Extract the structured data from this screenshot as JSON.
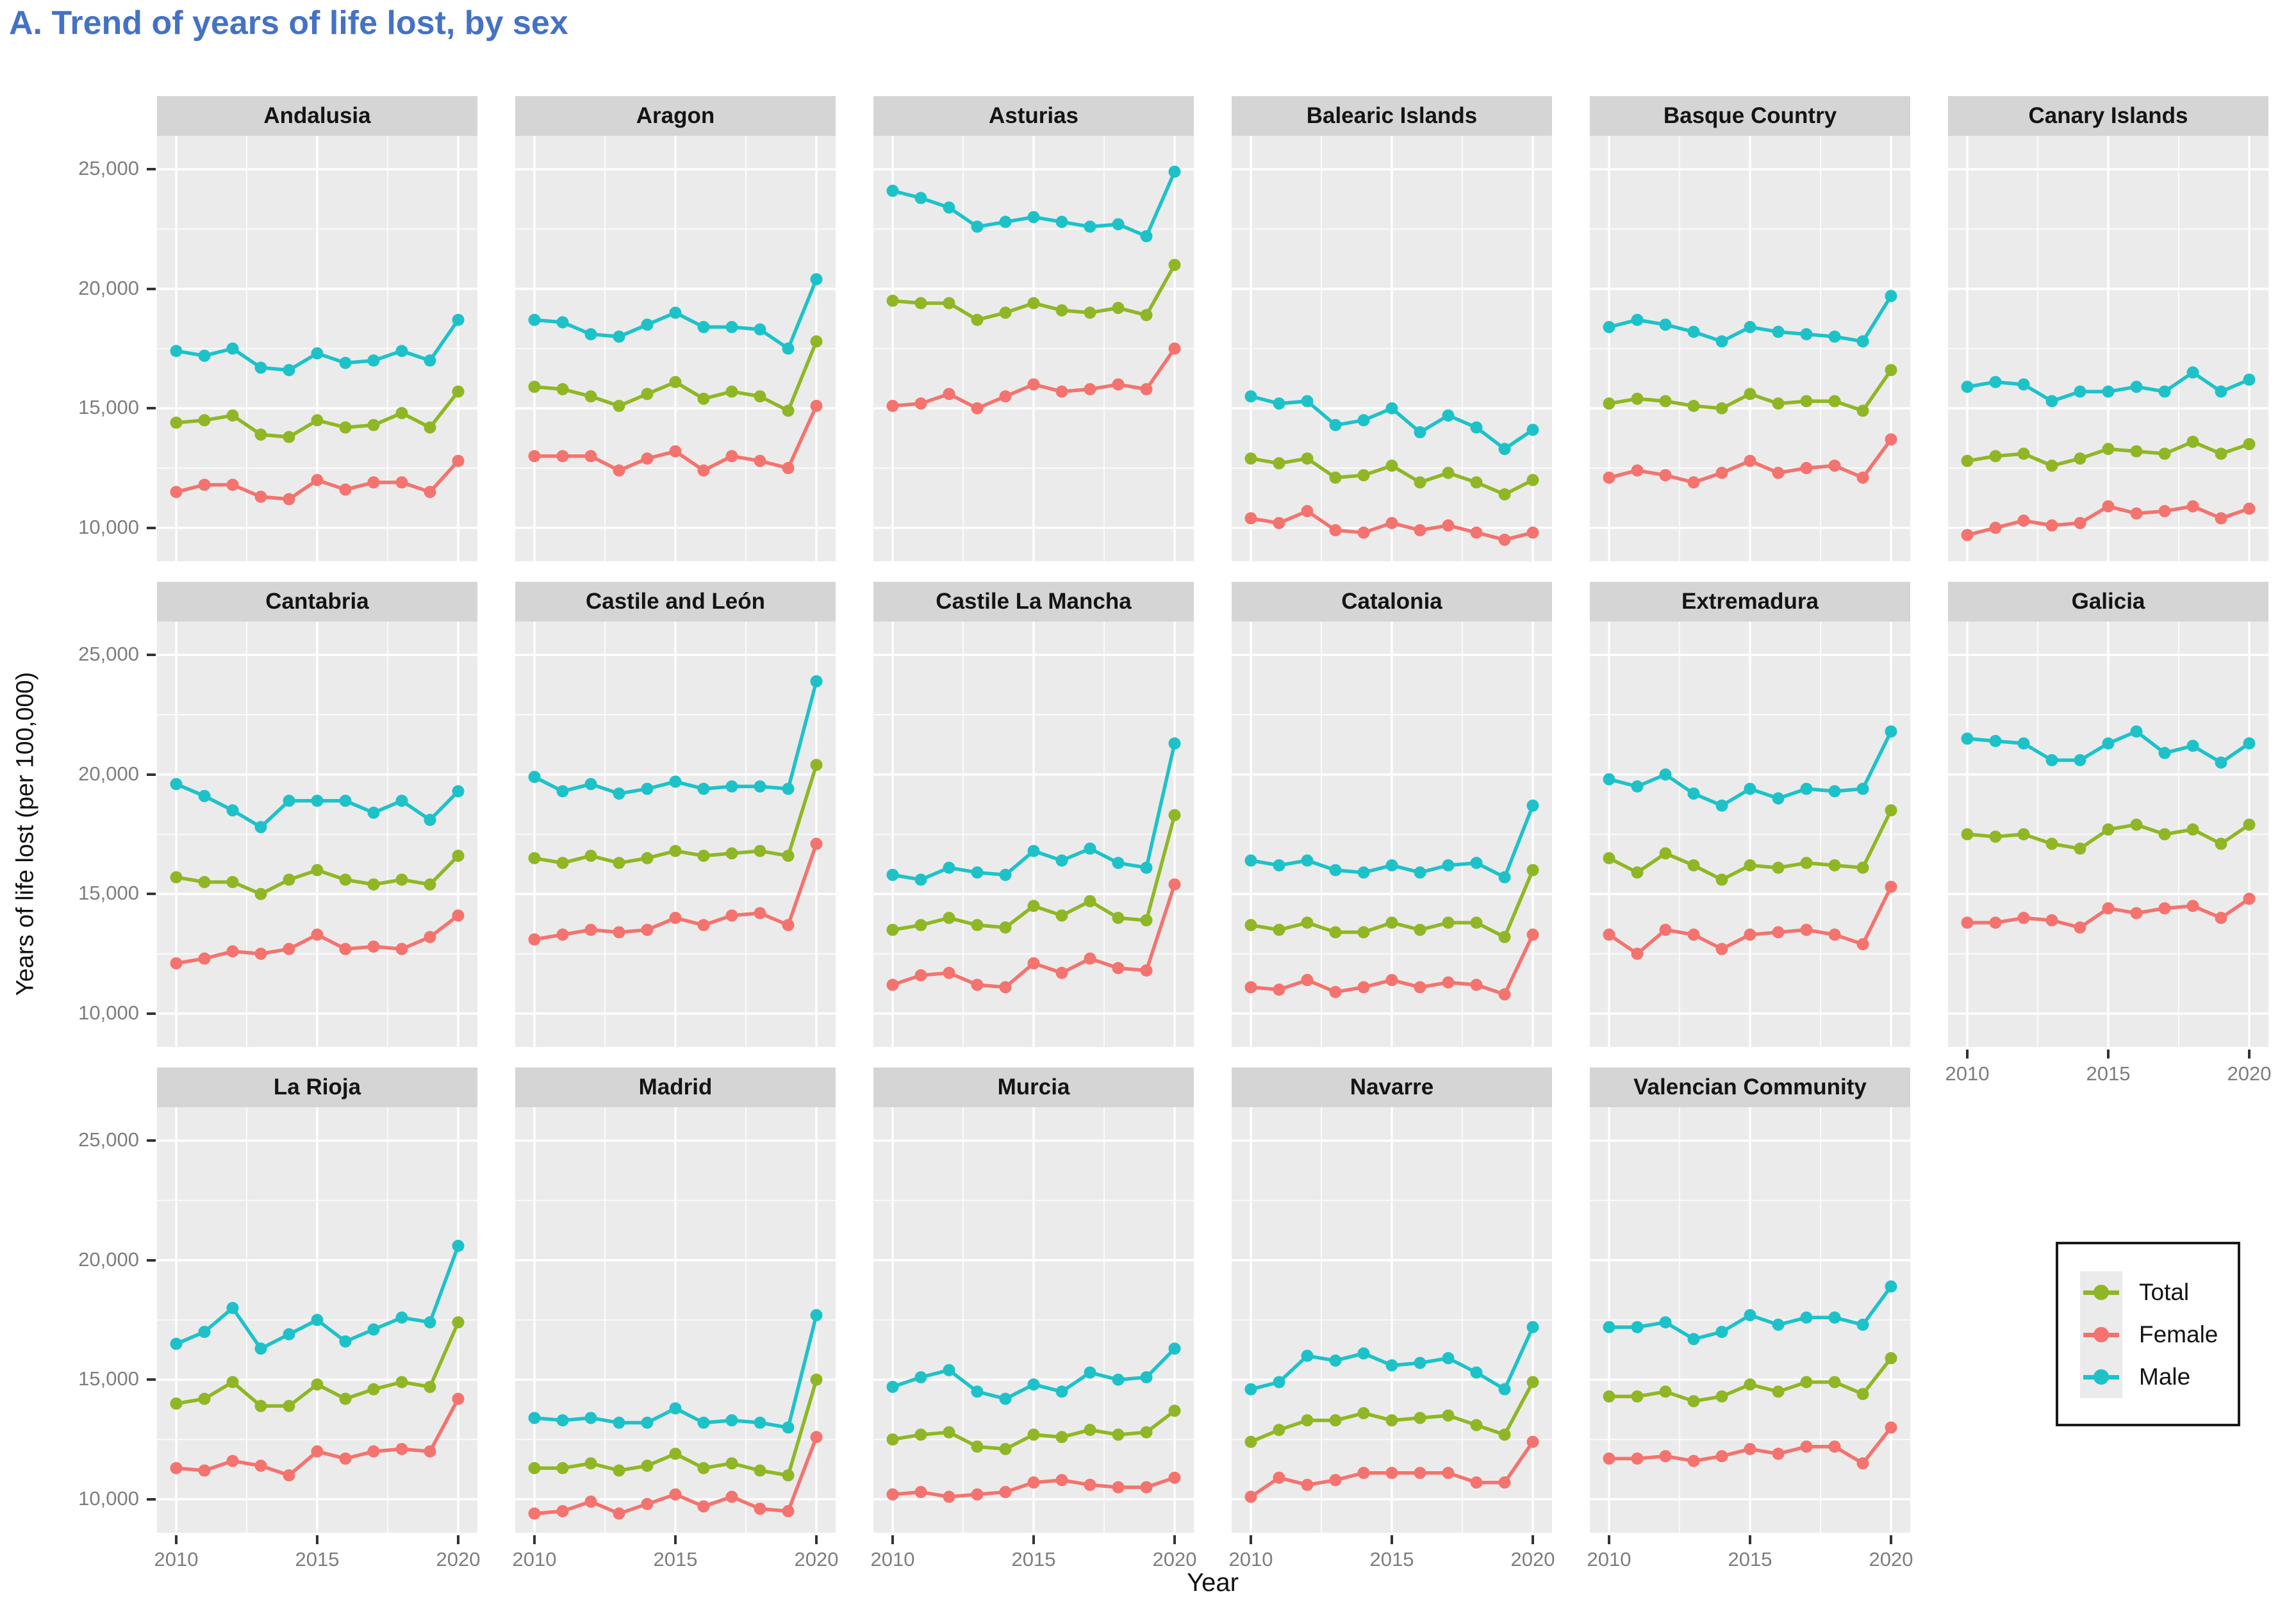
{
  "title": "A. Trend of years of life lost, by sex",
  "axes": {
    "x_label": "Year",
    "y_label": "Years of life lost (per 100,000)",
    "y_tick_labels": [
      "25,000",
      "20,000",
      "15,000",
      "10,000"
    ],
    "x_tick_labels": [
      "2010",
      "2015",
      "2020"
    ]
  },
  "legend": {
    "items": [
      {
        "label": "Total",
        "color": "#8fb725"
      },
      {
        "label": "Female",
        "color": "#f4736e"
      },
      {
        "label": "Male",
        "color": "#1dc2c9"
      }
    ]
  },
  "chart_data": {
    "type": "line",
    "title": "A. Trend of years of life lost, by sex",
    "xlabel": "Year",
    "ylabel": "Years of life lost (per 100,000)",
    "x": [
      2010,
      2011,
      2012,
      2013,
      2014,
      2015,
      2016,
      2017,
      2018,
      2019,
      2020
    ],
    "ylim": [
      8600,
      26400
    ],
    "y_major_ticks": [
      10000,
      15000,
      20000,
      25000
    ],
    "y_minor_ticks": [
      12500,
      17500,
      22500
    ],
    "x_major_ticks": [
      2010,
      2015,
      2020
    ],
    "x_minor_ticks": [
      2012.5,
      2017.5
    ],
    "grid": true,
    "legend_position": "bottom-right-cell",
    "series_meta": [
      {
        "name": "Total",
        "color": "#8fb725"
      },
      {
        "name": "Female",
        "color": "#f4736e"
      },
      {
        "name": "Male",
        "color": "#1dc2c9"
      }
    ],
    "facets": [
      {
        "name": "Andalusia",
        "row": 0,
        "col": 0,
        "series": {
          "Male": [
            17400,
            17200,
            17500,
            16700,
            16600,
            17300,
            16900,
            17000,
            17400,
            17000,
            18700
          ],
          "Total": [
            14400,
            14500,
            14700,
            13900,
            13800,
            14500,
            14200,
            14300,
            14800,
            14200,
            15700
          ],
          "Female": [
            11500,
            11800,
            11800,
            11300,
            11200,
            12000,
            11600,
            11900,
            11900,
            11500,
            12800
          ]
        }
      },
      {
        "name": "Aragon",
        "row": 0,
        "col": 1,
        "series": {
          "Male": [
            18700,
            18600,
            18100,
            18000,
            18500,
            19000,
            18400,
            18400,
            18300,
            17500,
            20400
          ],
          "Total": [
            15900,
            15800,
            15500,
            15100,
            15600,
            16100,
            15400,
            15700,
            15500,
            14900,
            17800
          ],
          "Female": [
            13000,
            13000,
            13000,
            12400,
            12900,
            13200,
            12400,
            13000,
            12800,
            12500,
            15100
          ]
        }
      },
      {
        "name": "Asturias",
        "row": 0,
        "col": 2,
        "series": {
          "Male": [
            24100,
            23800,
            23400,
            22600,
            22800,
            23000,
            22800,
            22600,
            22700,
            22200,
            24900
          ],
          "Total": [
            19500,
            19400,
            19400,
            18700,
            19000,
            19400,
            19100,
            19000,
            19200,
            18900,
            21000
          ],
          "Female": [
            15100,
            15200,
            15600,
            15000,
            15500,
            16000,
            15700,
            15800,
            16000,
            15800,
            17500
          ]
        }
      },
      {
        "name": "Balearic Islands",
        "row": 0,
        "col": 3,
        "series": {
          "Male": [
            15500,
            15200,
            15300,
            14300,
            14500,
            15000,
            14000,
            14700,
            14200,
            13300,
            14100
          ],
          "Total": [
            12900,
            12700,
            12900,
            12100,
            12200,
            12600,
            11900,
            12300,
            11900,
            11400,
            12000
          ],
          "Female": [
            10400,
            10200,
            10700,
            9900,
            9800,
            10200,
            9900,
            10100,
            9800,
            9500,
            9800
          ]
        }
      },
      {
        "name": "Basque Country",
        "row": 0,
        "col": 4,
        "series": {
          "Male": [
            18400,
            18700,
            18500,
            18200,
            17800,
            18400,
            18200,
            18100,
            18000,
            17800,
            19700
          ],
          "Total": [
            15200,
            15400,
            15300,
            15100,
            15000,
            15600,
            15200,
            15300,
            15300,
            14900,
            16600
          ],
          "Female": [
            12100,
            12400,
            12200,
            11900,
            12300,
            12800,
            12300,
            12500,
            12600,
            12100,
            13700
          ]
        }
      },
      {
        "name": "Canary Islands",
        "row": 0,
        "col": 5,
        "series": {
          "Male": [
            15900,
            16100,
            16000,
            15300,
            15700,
            15700,
            15900,
            15700,
            16500,
            15700,
            16200
          ],
          "Total": [
            12800,
            13000,
            13100,
            12600,
            12900,
            13300,
            13200,
            13100,
            13600,
            13100,
            13500
          ],
          "Female": [
            9700,
            10000,
            10300,
            10100,
            10200,
            10900,
            10600,
            10700,
            10900,
            10400,
            10800
          ]
        }
      },
      {
        "name": "Cantabria",
        "row": 1,
        "col": 0,
        "series": {
          "Male": [
            19600,
            19100,
            18500,
            17800,
            18900,
            18900,
            18900,
            18400,
            18900,
            18100,
            19300
          ],
          "Total": [
            15700,
            15500,
            15500,
            15000,
            15600,
            16000,
            15600,
            15400,
            15600,
            15400,
            16600
          ],
          "Female": [
            12100,
            12300,
            12600,
            12500,
            12700,
            13300,
            12700,
            12800,
            12700,
            13200,
            14100
          ]
        }
      },
      {
        "name": "Castile and León",
        "row": 1,
        "col": 1,
        "series": {
          "Male": [
            19900,
            19300,
            19600,
            19200,
            19400,
            19700,
            19400,
            19500,
            19500,
            19400,
            23900
          ],
          "Total": [
            16500,
            16300,
            16600,
            16300,
            16500,
            16800,
            16600,
            16700,
            16800,
            16600,
            20400
          ],
          "Female": [
            13100,
            13300,
            13500,
            13400,
            13500,
            14000,
            13700,
            14100,
            14200,
            13700,
            17100
          ]
        }
      },
      {
        "name": "Castile La Mancha",
        "row": 1,
        "col": 2,
        "series": {
          "Male": [
            15800,
            15600,
            16100,
            15900,
            15800,
            16800,
            16400,
            16900,
            16300,
            16100,
            21300
          ],
          "Total": [
            13500,
            13700,
            14000,
            13700,
            13600,
            14500,
            14100,
            14700,
            14000,
            13900,
            18300
          ],
          "Female": [
            11200,
            11600,
            11700,
            11200,
            11100,
            12100,
            11700,
            12300,
            11900,
            11800,
            15400
          ]
        }
      },
      {
        "name": "Catalonia",
        "row": 1,
        "col": 3,
        "series": {
          "Male": [
            16400,
            16200,
            16400,
            16000,
            15900,
            16200,
            15900,
            16200,
            16300,
            15700,
            18700
          ],
          "Total": [
            13700,
            13500,
            13800,
            13400,
            13400,
            13800,
            13500,
            13800,
            13800,
            13200,
            16000
          ],
          "Female": [
            11100,
            11000,
            11400,
            10900,
            11100,
            11400,
            11100,
            11300,
            11200,
            10800,
            13300
          ]
        }
      },
      {
        "name": "Extremadura",
        "row": 1,
        "col": 4,
        "series": {
          "Male": [
            19800,
            19500,
            20000,
            19200,
            18700,
            19400,
            19000,
            19400,
            19300,
            19400,
            21800
          ],
          "Total": [
            16500,
            15900,
            16700,
            16200,
            15600,
            16200,
            16100,
            16300,
            16200,
            16100,
            18500
          ],
          "Female": [
            13300,
            12500,
            13500,
            13300,
            12700,
            13300,
            13400,
            13500,
            13300,
            12900,
            15300
          ]
        }
      },
      {
        "name": "Galicia",
        "row": 1,
        "col": 5,
        "series": {
          "Male": [
            21500,
            21400,
            21300,
            20600,
            20600,
            21300,
            21800,
            20900,
            21200,
            20500,
            21300
          ],
          "Total": [
            17500,
            17400,
            17500,
            17100,
            16900,
            17700,
            17900,
            17500,
            17700,
            17100,
            17900
          ],
          "Female": [
            13800,
            13800,
            14000,
            13900,
            13600,
            14400,
            14200,
            14400,
            14500,
            14000,
            14800
          ]
        }
      },
      {
        "name": "La Rioja",
        "row": 2,
        "col": 0,
        "series": {
          "Male": [
            16500,
            17000,
            18000,
            16300,
            16900,
            17500,
            16600,
            17100,
            17600,
            17400,
            20600
          ],
          "Total": [
            14000,
            14200,
            14900,
            13900,
            13900,
            14800,
            14200,
            14600,
            14900,
            14700,
            17400
          ],
          "Female": [
            11300,
            11200,
            11600,
            11400,
            11000,
            12000,
            11700,
            12000,
            12100,
            12000,
            14200
          ]
        }
      },
      {
        "name": "Madrid",
        "row": 2,
        "col": 1,
        "series": {
          "Male": [
            13400,
            13300,
            13400,
            13200,
            13200,
            13800,
            13200,
            13300,
            13200,
            13000,
            17700
          ],
          "Total": [
            11300,
            11300,
            11500,
            11200,
            11400,
            11900,
            11300,
            11500,
            11200,
            11000,
            15000
          ],
          "Female": [
            9400,
            9500,
            9900,
            9400,
            9800,
            10200,
            9700,
            10100,
            9600,
            9500,
            12600
          ]
        }
      },
      {
        "name": "Murcia",
        "row": 2,
        "col": 2,
        "series": {
          "Male": [
            14700,
            15100,
            15400,
            14500,
            14200,
            14800,
            14500,
            15300,
            15000,
            15100,
            16300
          ],
          "Total": [
            12500,
            12700,
            12800,
            12200,
            12100,
            12700,
            12600,
            12900,
            12700,
            12800,
            13700
          ],
          "Female": [
            10200,
            10300,
            10100,
            10200,
            10300,
            10700,
            10800,
            10600,
            10500,
            10500,
            10900
          ]
        }
      },
      {
        "name": "Navarre",
        "row": 2,
        "col": 3,
        "series": {
          "Male": [
            14600,
            14900,
            16000,
            15800,
            16100,
            15600,
            15700,
            15900,
            15300,
            14600,
            17200
          ],
          "Total": [
            12400,
            12900,
            13300,
            13300,
            13600,
            13300,
            13400,
            13500,
            13100,
            12700,
            14900
          ],
          "Female": [
            10100,
            10900,
            10600,
            10800,
            11100,
            11100,
            11100,
            11100,
            10700,
            10700,
            12400
          ]
        }
      },
      {
        "name": "Valencian Community",
        "row": 2,
        "col": 4,
        "series": {
          "Male": [
            17200,
            17200,
            17400,
            16700,
            17000,
            17700,
            17300,
            17600,
            17600,
            17300,
            18900
          ],
          "Total": [
            14300,
            14300,
            14500,
            14100,
            14300,
            14800,
            14500,
            14900,
            14900,
            14400,
            15900
          ],
          "Female": [
            11700,
            11700,
            11800,
            11600,
            11800,
            12100,
            11900,
            12200,
            12200,
            11500,
            13000
          ]
        }
      }
    ]
  }
}
